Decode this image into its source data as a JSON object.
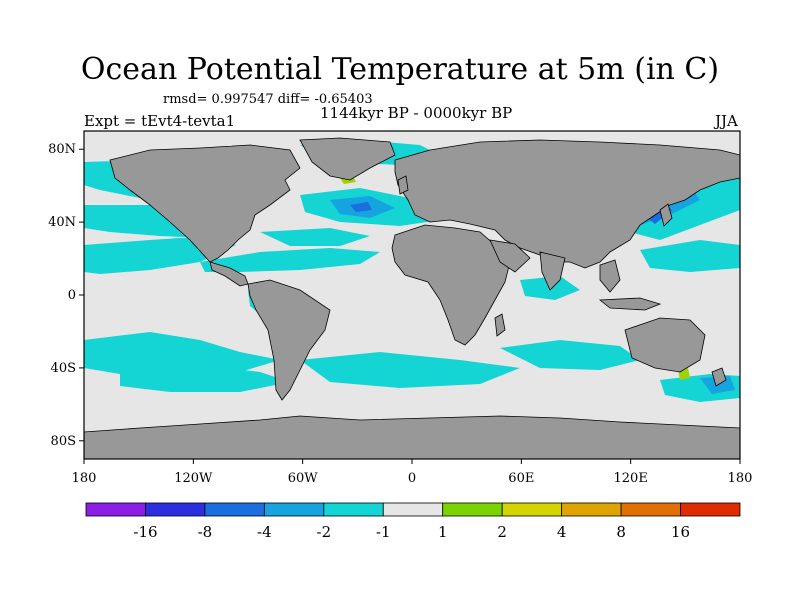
{
  "title": "Ocean Potential Temperature at 5m (in C)",
  "stats": "rmsd= 0.997547 diff= -0.65403",
  "left_label": "Expt = tEvt4-tevta1",
  "center_label": "1144kyr BP - 0000kyr BP",
  "right_label": "JJA",
  "lat_ticks": [
    {
      "label": "80N",
      "lat": 80
    },
    {
      "label": "40N",
      "lat": 40
    },
    {
      "label": "0",
      "lat": 0
    },
    {
      "label": "40S",
      "lat": -40
    },
    {
      "label": "80S",
      "lat": -80
    }
  ],
  "lon_ticks": [
    {
      "label": "180",
      "lon": -180
    },
    {
      "label": "120W",
      "lon": -120
    },
    {
      "label": "60W",
      "lon": -60
    },
    {
      "label": "0",
      "lon": 0
    },
    {
      "label": "60E",
      "lon": 60
    },
    {
      "label": "120E",
      "lon": 120
    },
    {
      "label": "180",
      "lon": 180
    }
  ],
  "colors": {
    "ocean_neutral": "#e6e6e6",
    "land": "#989898",
    "cool": "#14d4d4",
    "cooler": "#16a4e0",
    "coolest": "#1a6ee0",
    "warm": "#a0d200"
  },
  "colorbar": {
    "colors": [
      "#8c1ee6",
      "#2d2ee0",
      "#1a6ee0",
      "#16a4e0",
      "#14d4d4",
      "#e6e6e6",
      "#7ad400",
      "#d6d400",
      "#e0a400",
      "#e06e00",
      "#e02d00"
    ],
    "labels": [
      "-16",
      "-8",
      "-4",
      "-2",
      "-1",
      "1",
      "2",
      "4",
      "8",
      "16"
    ]
  }
}
